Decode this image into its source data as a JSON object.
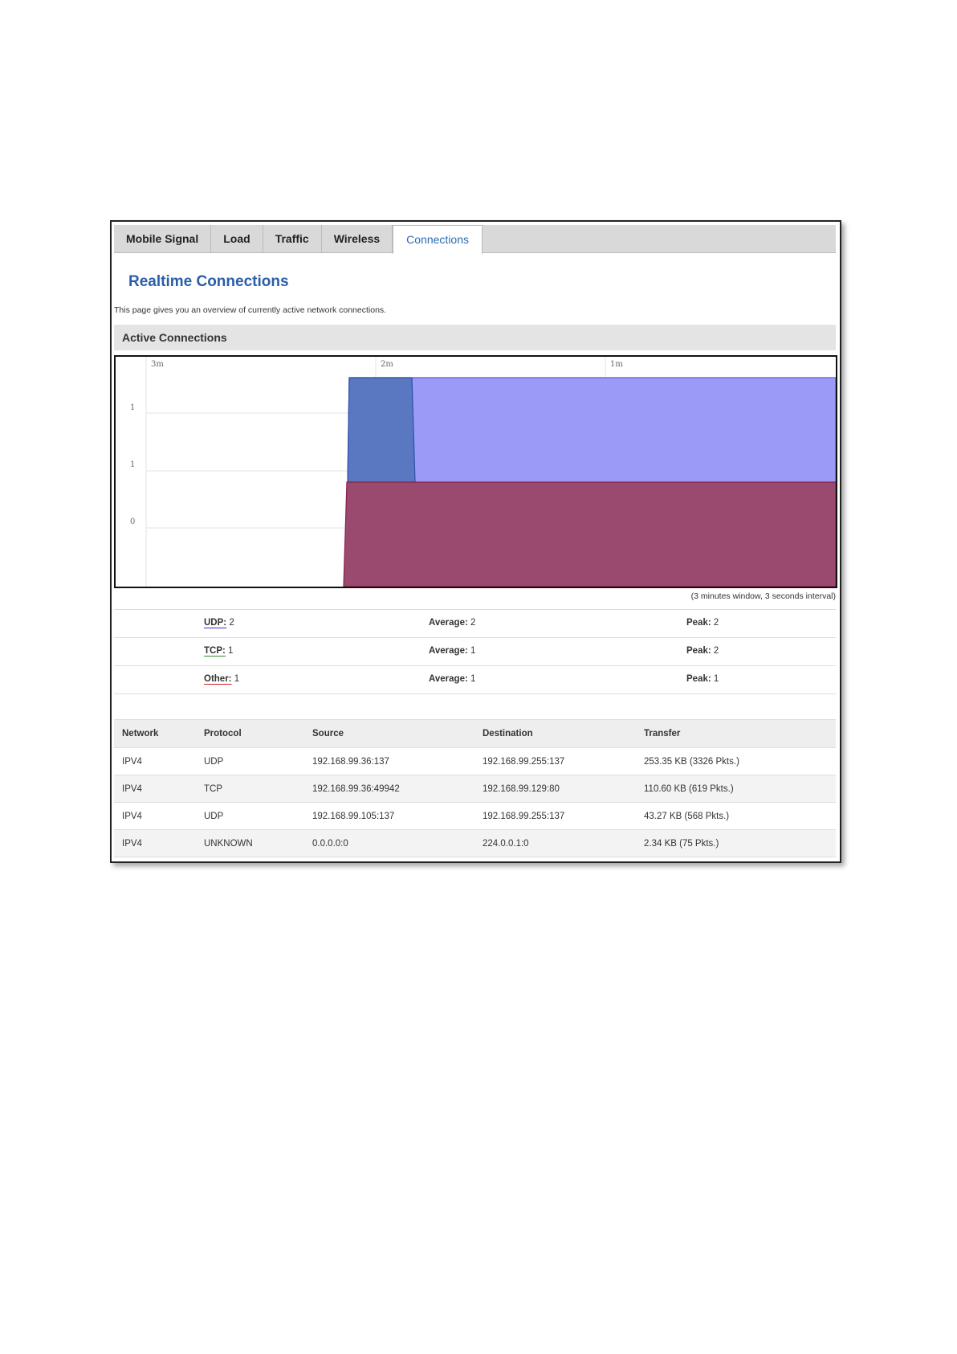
{
  "tabs": [
    {
      "label": "Mobile Signal"
    },
    {
      "label": "Load"
    },
    {
      "label": "Traffic"
    },
    {
      "label": "Wireless"
    },
    {
      "label": "Connections",
      "active": true
    }
  ],
  "page": {
    "title": "Realtime Connections",
    "description": "This page gives you an overview of currently active network connections."
  },
  "section": {
    "title": "Active Connections"
  },
  "graph": {
    "x_ticks": [
      "3m",
      "2m",
      "1m"
    ],
    "y_ticks": [
      "1",
      "1",
      "0"
    ],
    "window_note": "(3 minutes window, 3 seconds interval)"
  },
  "chart_data": {
    "type": "area",
    "x_ticks": [
      "3m",
      "2m",
      "1m"
    ],
    "y_tick_labels": [
      "1",
      "1",
      "0"
    ],
    "series": [
      {
        "name": "UDP",
        "color": "#7b7dff",
        "current": 2,
        "average": 2,
        "peak": 2
      },
      {
        "name": "TCP",
        "color": "#3d5fb0",
        "current": 1,
        "average": 1,
        "peak": 2
      },
      {
        "name": "Other",
        "color": "#8e2a5a",
        "current": 1,
        "average": 1,
        "peak": 1
      }
    ]
  },
  "stats": [
    {
      "label": "UDP:",
      "value": "2",
      "avg_label": "Average:",
      "avg": "2",
      "peak_label": "Peak:",
      "peak": "2",
      "underline": "#3333cc"
    },
    {
      "label": "TCP:",
      "value": "1",
      "avg_label": "Average:",
      "avg": "1",
      "peak_label": "Peak:",
      "peak": "2",
      "underline": "#2e8b2e"
    },
    {
      "label": "Other:",
      "value": "1",
      "avg_label": "Average:",
      "avg": "1",
      "peak_label": "Peak:",
      "peak": "1",
      "underline": "#cc2222"
    }
  ],
  "table": {
    "headers": [
      "Network",
      "Protocol",
      "Source",
      "Destination",
      "Transfer"
    ],
    "rows": [
      [
        "IPV4",
        "UDP",
        "192.168.99.36:137",
        "192.168.99.255:137",
        "253.35 KB (3326 Pkts.)"
      ],
      [
        "IPV4",
        "TCP",
        "192.168.99.36:49942",
        "192.168.99.129:80",
        "110.60 KB (619 Pkts.)"
      ],
      [
        "IPV4",
        "UDP",
        "192.168.99.105:137",
        "192.168.99.255:137",
        "43.27 KB (568 Pkts.)"
      ],
      [
        "IPV4",
        "UNKNOWN",
        "0.0.0.0:0",
        "224.0.0.1:0",
        "2.34 KB (75 Pkts.)"
      ]
    ]
  }
}
